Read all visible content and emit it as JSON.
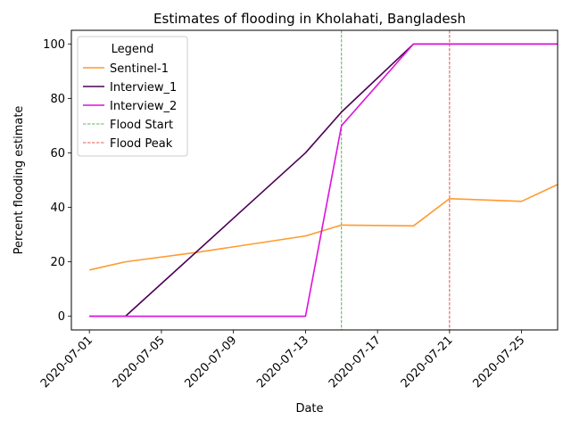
{
  "chart_data": {
    "type": "line",
    "title": "Estimates of flooding in Kholahati, Bangladesh",
    "xlabel": "Date",
    "ylabel": "Percent flooding estimate",
    "xlim": [
      "2020-06-30",
      "2020-07-27"
    ],
    "ylim": [
      -5,
      105
    ],
    "x_ticks": [
      "2020-07-01",
      "2020-07-05",
      "2020-07-09",
      "2020-07-13",
      "2020-07-17",
      "2020-07-21",
      "2020-07-25"
    ],
    "y_ticks": [
      0,
      20,
      40,
      60,
      80,
      100
    ],
    "grid": false,
    "legend": {
      "title": "Legend",
      "placement": "top-left"
    },
    "series": [
      {
        "name": "Sentinel-1",
        "color": "#ff9a2e",
        "style": "solid",
        "x": [
          "2020-07-01",
          "2020-07-03",
          "2020-07-07",
          "2020-07-13",
          "2020-07-15",
          "2020-07-19",
          "2020-07-21",
          "2020-07-25",
          "2020-07-27"
        ],
        "y": [
          17,
          20,
          23.5,
          29.5,
          33.5,
          33.2,
          43.2,
          42.2,
          48.4
        ]
      },
      {
        "name": "Interview_1",
        "color": "#4b0055",
        "style": "solid",
        "x": [
          "2020-07-01",
          "2020-07-03",
          "2020-07-13",
          "2020-07-15",
          "2020-07-19",
          "2020-07-27"
        ],
        "y": [
          0,
          0,
          60,
          75,
          100,
          100
        ]
      },
      {
        "name": "Interview_2",
        "color": "#dd11dd",
        "style": "solid",
        "x": [
          "2020-07-01",
          "2020-07-13",
          "2020-07-15",
          "2020-07-19",
          "2020-07-27"
        ],
        "y": [
          0,
          0,
          70,
          100,
          100
        ]
      }
    ],
    "vlines": [
      {
        "name": "Flood Start",
        "x": "2020-07-15",
        "color": "#2ca02c",
        "style": "dashed"
      },
      {
        "name": "Flood Peak",
        "x": "2020-07-21",
        "color": "#d62728",
        "style": "dashed"
      }
    ]
  }
}
